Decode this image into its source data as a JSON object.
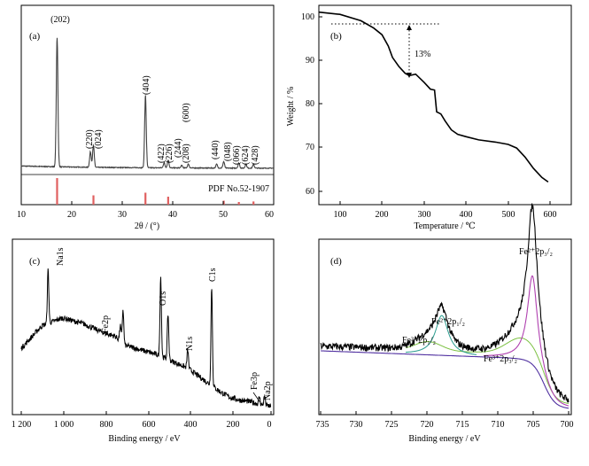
{
  "chart_data": [
    {
      "panel": "(a)",
      "type": "line",
      "xlabel": "2θ / (°)",
      "ylabel": "",
      "xlim": [
        10,
        60
      ],
      "xticks": [
        10,
        20,
        30,
        40,
        50,
        60
      ],
      "reference_label": "PDF No.52-1907",
      "peak_labels": [
        {
          "label": "(202)",
          "x": 17.1
        },
        {
          "label": "(220)",
          "x": 23.7
        },
        {
          "label": "(024)",
          "x": 24.3
        },
        {
          "label": "(404)",
          "x": 34.6
        },
        {
          "label": "(422)",
          "x": 38.3
        },
        {
          "label": "(226)",
          "x": 39.1
        },
        {
          "label": "(244)",
          "x": 41.8
        },
        {
          "label": "(600)",
          "x": 43.5
        },
        {
          "label": "(208)",
          "x": 43.1
        },
        {
          "label": "(440)",
          "x": 48.7
        },
        {
          "label": "(048)",
          "x": 50.1
        },
        {
          "label": "(066)",
          "x": 53.1
        },
        {
          "label": "(624)",
          "x": 54.5
        },
        {
          "label": "(428)",
          "x": 56.0
        }
      ],
      "series": [
        {
          "color": "#404040",
          "peaks": [
            {
              "x": 17.1,
              "h": 1.0
            },
            {
              "x": 23.7,
              "h": 0.12
            },
            {
              "x": 24.3,
              "h": 0.17
            },
            {
              "x": 34.6,
              "h": 0.56
            },
            {
              "x": 38.3,
              "h": 0.04
            },
            {
              "x": 39.1,
              "h": 0.06
            },
            {
              "x": 41.8,
              "h": 0.02
            },
            {
              "x": 43.1,
              "h": 0.03
            },
            {
              "x": 48.7,
              "h": 0.03
            },
            {
              "x": 50.1,
              "h": 0.05
            },
            {
              "x": 53.1,
              "h": 0.04
            },
            {
              "x": 54.5,
              "h": 0.03
            },
            {
              "x": 56.0,
              "h": 0.03
            }
          ]
        },
        {
          "color": "#e06060",
          "reference_lines": [
            {
              "x": 17.1,
              "h": 1.0
            },
            {
              "x": 24.3,
              "h": 0.35
            },
            {
              "x": 34.6,
              "h": 0.45
            },
            {
              "x": 39.1,
              "h": 0.3
            },
            {
              "x": 50.1,
              "h": 0.15
            },
            {
              "x": 53.1,
              "h": 0.1
            },
            {
              "x": 56.0,
              "h": 0.12
            }
          ]
        }
      ]
    },
    {
      "panel": "(b)",
      "type": "line",
      "xlabel": "Temperature / ℃",
      "ylabel": "Weight / %",
      "xlim": [
        50,
        650
      ],
      "ylim": [
        57,
        101
      ],
      "xticks": [
        100,
        200,
        300,
        400,
        500,
        600
      ],
      "yticks": [
        60,
        70,
        80,
        90,
        100
      ],
      "annotation": "13%",
      "series": [
        {
          "color": "#000000",
          "x": [
            50,
            100,
            150,
            180,
            200,
            215,
            225,
            240,
            255,
            265,
            280,
            300,
            315,
            325,
            330,
            340,
            350,
            365,
            380,
            400,
            430,
            470,
            500,
            520,
            540,
            560,
            580,
            595
          ],
          "y": [
            99.5,
            99.0,
            97.6,
            96.0,
            94.5,
            92.0,
            89.5,
            87.5,
            86.0,
            85.5,
            85.8,
            84.0,
            82.5,
            82.3,
            77.5,
            77.0,
            75.5,
            73.5,
            72.5,
            72.0,
            71.3,
            70.8,
            70.3,
            69.5,
            67.5,
            65.0,
            63.0,
            62.0
          ]
        }
      ]
    },
    {
      "panel": "(c)",
      "type": "line",
      "xlabel": "Binding energy / eV",
      "ylabel": "",
      "xlim": [
        1200,
        0
      ],
      "xticks": [
        1200,
        1000,
        800,
        600,
        400,
        200,
        0
      ],
      "xticklabels": [
        "1 200",
        "1 000",
        "800",
        "600",
        "400",
        "200",
        "0"
      ],
      "peak_labels": [
        {
          "label": "Na1s",
          "x": 1071
        },
        {
          "label": "Fe2p",
          "x": 711
        },
        {
          "label": "O1s",
          "x": 530
        },
        {
          "label": "N1s",
          "x": 400
        },
        {
          "label": "C1s",
          "x": 285
        },
        {
          "label": "Fe3p",
          "x": 56
        },
        {
          "label": "Na2p",
          "x": 31
        }
      ],
      "series": [
        {
          "color": "#000000",
          "baseline": [
            [
              1200,
              0.4
            ],
            [
              1100,
              0.55
            ],
            [
              1000,
              0.6
            ],
            [
              900,
              0.56
            ],
            [
              800,
              0.5
            ],
            [
              750,
              0.48
            ],
            [
              700,
              0.42
            ],
            [
              650,
              0.4
            ],
            [
              600,
              0.38
            ],
            [
              550,
              0.36
            ],
            [
              500,
              0.33
            ],
            [
              450,
              0.3
            ],
            [
              400,
              0.27
            ],
            [
              350,
              0.22
            ],
            [
              300,
              0.17
            ],
            [
              250,
              0.12
            ],
            [
              200,
              0.08
            ],
            [
              150,
              0.06
            ],
            [
              100,
              0.05
            ],
            [
              50,
              0.03
            ],
            [
              0,
              0.02
            ]
          ],
          "peaks": [
            {
              "x": 1071,
              "h": 0.35
            },
            {
              "x": 711,
              "h": 0.22
            },
            {
              "x": 724,
              "h": 0.1
            },
            {
              "x": 530,
              "h": 0.52
            },
            {
              "x": 495,
              "h": 0.3
            },
            {
              "x": 400,
              "h": 0.12
            },
            {
              "x": 285,
              "h": 0.65
            },
            {
              "x": 56,
              "h": 0.05
            },
            {
              "x": 31,
              "h": 0.06
            }
          ]
        }
      ]
    },
    {
      "panel": "(d)",
      "type": "line",
      "xlabel": "Binding energy / eV",
      "ylabel": "",
      "xlim": [
        735,
        700
      ],
      "xticks": [
        735,
        730,
        725,
        720,
        715,
        710,
        705,
        700
      ],
      "peak_labels": [
        {
          "label": "Fe³⁺2p₁/₂"
        },
        {
          "label": "Fe²⁺2p₁/₂"
        },
        {
          "label": "Fe³⁺2p₃/₂"
        },
        {
          "label": "Fe²⁺2p₃/₂"
        }
      ],
      "series": [
        {
          "color": "#000000",
          "role": "raw"
        },
        {
          "color": "#5030a0",
          "role": "background"
        },
        {
          "color": "#2a9d8f",
          "role": "Fe²⁺2p₁/₂ fit"
        },
        {
          "color": "#b040b0",
          "role": "Fe²⁺2p₃/₂ fit"
        },
        {
          "color": "#7cc142",
          "role": "Fe³⁺ fit"
        }
      ]
    }
  ],
  "panel_a": {
    "label": "(a)",
    "reference": "PDF No.52-1907",
    "xlabel": "2θ / (°)",
    "peaks": [
      "(202)",
      "(220)",
      "(024)",
      "(404)",
      "(422)",
      "(226)",
      "(244)",
      "(600)",
      "(208)",
      "(440)",
      "(048)",
      "(066)",
      "(624)",
      "(428)"
    ],
    "ticks": [
      "10",
      "20",
      "30",
      "40",
      "50",
      "60"
    ]
  },
  "panel_b": {
    "label": "(b)",
    "ylabel": "Weight / %",
    "xlabel": "Temperature / ℃",
    "annotation": "13%",
    "xticks": [
      "100",
      "200",
      "300",
      "400",
      "500",
      "600"
    ],
    "yticks": [
      "60",
      "70",
      "80",
      "90",
      "100"
    ]
  },
  "panel_c": {
    "label": "(c)",
    "xlabel": "Binding energy / eV",
    "xticks": [
      "1 200",
      "1 000",
      "800",
      "600",
      "400",
      "200",
      "0"
    ],
    "peaks": [
      "Na1s",
      "Fe2p",
      "O1s",
      "N1s",
      "C1s",
      "Fe3p",
      "Na2p"
    ]
  },
  "panel_d": {
    "label": "(d)",
    "xlabel": "Binding energy / eV",
    "xticks": [
      "735",
      "730",
      "725",
      "720",
      "715",
      "710",
      "705",
      "700"
    ],
    "fe3_p12": "Fe³⁺2p₁/₂",
    "fe2_p12": "Fe²⁺2p₁/₂",
    "fe3_p32": "Fe³⁺2p₃/₂",
    "fe2_p32": "Fe²⁺2p₃/₂"
  }
}
